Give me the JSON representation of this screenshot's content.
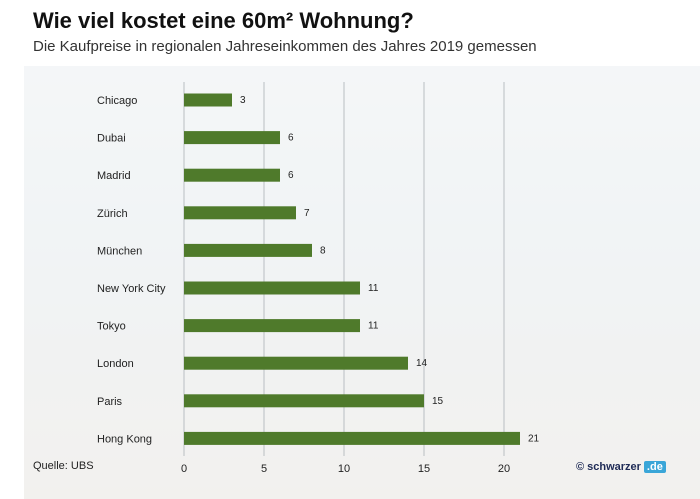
{
  "header": {
    "title": "Wie viel kostet eine 60m² Wohnung?",
    "subtitle": "Die Kaufpreise in regionalen Jahreseinkommen des Jahres 2019 gemessen"
  },
  "footer": {
    "source": "Quelle: UBS",
    "brand_copy": "©",
    "brand_name": "schwarzer",
    "brand_tld": ".de"
  },
  "colors": {
    "bar": "#4f7a2b",
    "grid": "#b9bec2",
    "text": "#222222"
  },
  "chart_data": {
    "type": "bar",
    "orientation": "horizontal",
    "categories": [
      "Chicago",
      "Dubai",
      "Madrid",
      "Zürich",
      "München",
      "New York City",
      "Tokyo",
      "London",
      "Paris",
      "Hong Kong"
    ],
    "values": [
      3,
      6,
      6,
      7,
      8,
      11,
      11,
      14,
      15,
      21
    ],
    "xticks": [
      0,
      5,
      10,
      15,
      20
    ],
    "xlim": [
      0,
      24.5
    ],
    "grid": true,
    "data_labels": true
  }
}
